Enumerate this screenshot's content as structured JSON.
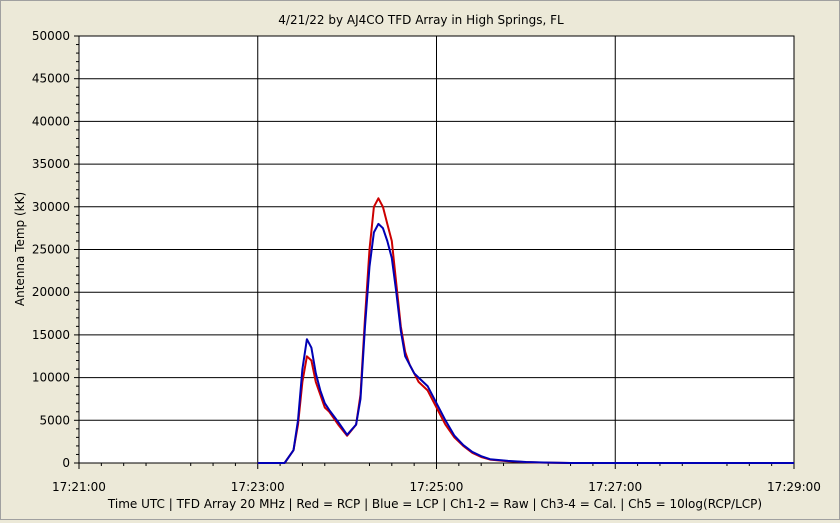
{
  "chart_data": {
    "type": "line",
    "title": "4/21/22  by  AJ4CO TFD Array  in  High Springs, FL",
    "xlabel": "Time UTC | TFD Array 20 MHz | Red = RCP | Blue = LCP | Ch1-2 = Raw | Ch3-4 = Cal. | Ch5 = 10log(RCP/LCP)",
    "ylabel": "Antenna Temp (kK)",
    "ylim": [
      0,
      50000
    ],
    "yticks": [
      0,
      5000,
      10000,
      15000,
      20000,
      25000,
      30000,
      35000,
      40000,
      45000,
      50000
    ],
    "ytick_labels": [
      "0",
      "5000",
      "10000",
      "15000",
      "20000",
      "25000",
      "30000",
      "35000",
      "40000",
      "45000",
      "50000"
    ],
    "xlim_minutes": [
      0,
      8
    ],
    "xticks_minutes": [
      0,
      2,
      4,
      6,
      8
    ],
    "xtick_labels": [
      "17:21:00",
      "17:23:00",
      "17:25:00",
      "17:27:00",
      "17:29:00"
    ],
    "x_unit": "minutes after 17:21:00 UTC",
    "grid": true,
    "series": [
      {
        "name": "RCP",
        "color": "#cc0000",
        "x": [
          2.0,
          2.3,
          2.4,
          2.45,
          2.5,
          2.55,
          2.6,
          2.65,
          2.7,
          2.75,
          2.8,
          2.9,
          3.0,
          3.1,
          3.15,
          3.2,
          3.25,
          3.3,
          3.35,
          3.4,
          3.45,
          3.5,
          3.55,
          3.6,
          3.65,
          3.7,
          3.75,
          3.8,
          3.85,
          3.9,
          4.0,
          4.1,
          4.2,
          4.3,
          4.4,
          4.5,
          4.6,
          4.8,
          5.0,
          5.2,
          5.5,
          6.0,
          6.5,
          8.0
        ],
        "values": [
          0,
          0,
          1500,
          4500,
          9500,
          12500,
          12000,
          9500,
          8000,
          6500,
          6000,
          4500,
          3200,
          4500,
          8000,
          17000,
          25000,
          30000,
          31000,
          30000,
          28000,
          26000,
          21000,
          16000,
          13000,
          11500,
          10500,
          9500,
          9000,
          8500,
          6500,
          4500,
          3000,
          2000,
          1200,
          700,
          400,
          200,
          100,
          50,
          0,
          0,
          0,
          0
        ]
      },
      {
        "name": "LCP",
        "color": "#0000b4",
        "x": [
          2.0,
          2.3,
          2.4,
          2.45,
          2.5,
          2.55,
          2.6,
          2.65,
          2.7,
          2.75,
          2.8,
          2.9,
          3.0,
          3.1,
          3.15,
          3.2,
          3.25,
          3.3,
          3.35,
          3.4,
          3.45,
          3.5,
          3.55,
          3.6,
          3.65,
          3.7,
          3.75,
          3.8,
          3.85,
          3.9,
          4.0,
          4.1,
          4.2,
          4.3,
          4.4,
          4.5,
          4.6,
          4.8,
          5.0,
          5.2,
          5.5,
          6.0,
          6.5,
          8.0
        ],
        "values": [
          0,
          0,
          1500,
          5000,
          11000,
          14500,
          13500,
          10500,
          8500,
          7000,
          6200,
          4800,
          3300,
          4500,
          7500,
          16000,
          23000,
          27000,
          28000,
          27500,
          26000,
          24000,
          20000,
          15500,
          12500,
          11500,
          10500,
          10000,
          9500,
          9000,
          7000,
          5000,
          3200,
          2100,
          1300,
          800,
          450,
          250,
          120,
          60,
          0,
          0,
          0,
          0
        ]
      }
    ]
  }
}
